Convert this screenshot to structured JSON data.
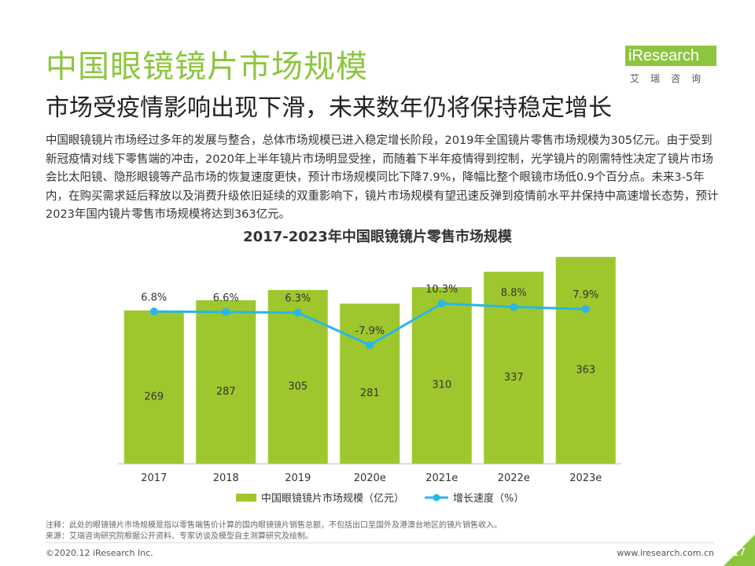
{
  "title": "中国眼镜镜片市场规模",
  "subtitle": "市场受疫情影响出现下滑，未来数年仍将保持稳定增长",
  "body": "中国眼镜镜片市场经过多年的发展与整合，总体市场规模已进入稳定增长阶段，2019年全国镜片零售市场规模为305亿元。由于受到新冠疫情对线下零售端的冲击，2020年上半年镜片市场明显受挫，而随着下半年疫情得到控制，光学镜片的刚需特性决定了镜片市场会比太阳镜、隐形眼镜等产品市场的恢复速度更快，预计市场规模同比下降7.9%，降幅比整个眼镜市场低0.9个百分点。未来3-5年内，在购买需求延后释放以及消费升级依旧延续的双重影响下，镜片市场规模有望迅速反弹到疫情前水平并保持中高速增长态势，预计2023年国内镜片零售市场规模将达到363亿元。",
  "logo": {
    "brand": "iResearch",
    "sub": "艾瑞咨询"
  },
  "chart_data": {
    "type": "bar",
    "title": "2017-2023年中国眼镜镜片零售市场规模",
    "categories": [
      "2017",
      "2018",
      "2019",
      "2020e",
      "2021e",
      "2022e",
      "2023e"
    ],
    "series": [
      {
        "name": "中国眼镜镜片市场规模（亿元）",
        "type": "bar",
        "axis": "left",
        "values": [
          269,
          287,
          305,
          281,
          310,
          337,
          363
        ]
      },
      {
        "name": "增长速度（%）",
        "type": "line",
        "axis": "right",
        "values": [
          6.8,
          6.6,
          6.3,
          -7.9,
          10.3,
          8.8,
          7.9
        ],
        "labels": [
          "6.8%",
          "6.6%",
          "6.3%",
          "-7.9%",
          "10.3%",
          "8.8%",
          "7.9%"
        ]
      }
    ],
    "ylim_left": [
      0,
      400
    ],
    "ylim_right": [
      -60,
      40
    ],
    "grid": false,
    "legend": "bottom",
    "colors": {
      "bar": "#9ec72d",
      "line": "#29b6e8"
    }
  },
  "notes": [
    "注释：此处的眼镜镜片市场规模是指以零售端售价计算的国内眼镜镜片销售总额，不包括出口至国外及港澳台地区的镜片销售收入。",
    "来源：艾瑞咨询研究院根据公开资料、专家访谈及模型自主测算研究及绘制。"
  ],
  "footer": {
    "copyright": "©2020.12 iResearch Inc.",
    "url": "www.iresearch.com.cn",
    "page": "17"
  }
}
